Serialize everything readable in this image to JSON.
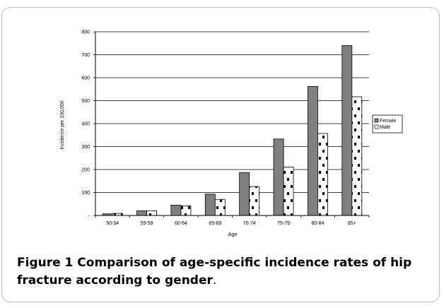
{
  "chart_data": {
    "type": "bar",
    "title": "",
    "xlabel": "Age",
    "ylabel": "Incidence per 100,000",
    "ylim": [
      0,
      800
    ],
    "yticks": [
      0,
      100,
      200,
      300,
      400,
      500,
      600,
      700,
      800
    ],
    "ytick_labels": [
      "-",
      "100",
      "200",
      "300",
      "400",
      "500",
      "600",
      "700",
      "800"
    ],
    "categories": [
      "50-54",
      "55-59",
      "60-64",
      "65-69",
      "70-74",
      "75-79",
      "80-84",
      "85+"
    ],
    "series": [
      {
        "name": "Female",
        "values": [
          7,
          20,
          45,
          93,
          187,
          333,
          562,
          740
        ],
        "color": "#808080"
      },
      {
        "name": "Male",
        "values": [
          9,
          20,
          42,
          70,
          126,
          211,
          357,
          517
        ],
        "color": "#ffffff"
      }
    ],
    "grid": true,
    "legend": "right"
  },
  "caption": {
    "label": "Figure 1",
    "text": " Comparison of age-specific incidence rates of hip fracture according to gender",
    "end": "."
  }
}
